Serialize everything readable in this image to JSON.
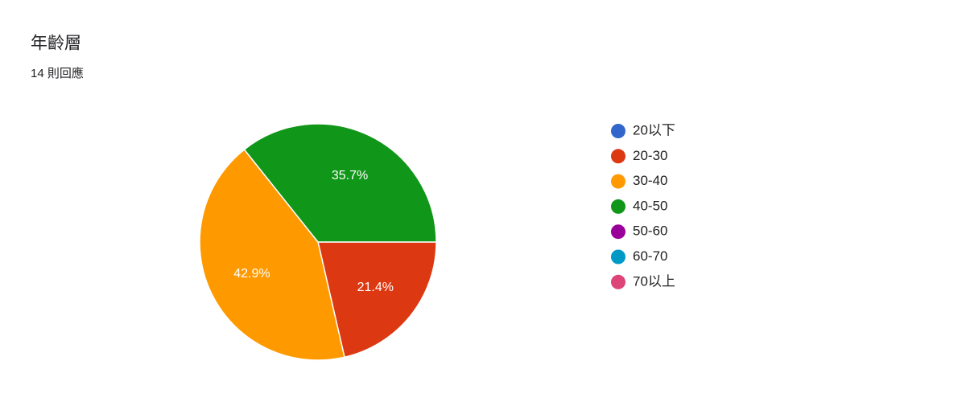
{
  "chart_data": {
    "type": "pie",
    "title": "年齡層",
    "subtitle": "14 則回應",
    "categories": [
      "20以下",
      "20-30",
      "30-40",
      "40-50",
      "50-60",
      "60-70",
      "70以上"
    ],
    "values": [
      0,
      21.4,
      42.9,
      35.7,
      0,
      0,
      0
    ],
    "value_labels": [
      null,
      "21.4%",
      "42.9%",
      "35.7%",
      null,
      null,
      null
    ],
    "colors": [
      "#3366cc",
      "#dc3912",
      "#ff9900",
      "#109618",
      "#990099",
      "#0099c6",
      "#dd4477"
    ],
    "legend": "right"
  }
}
